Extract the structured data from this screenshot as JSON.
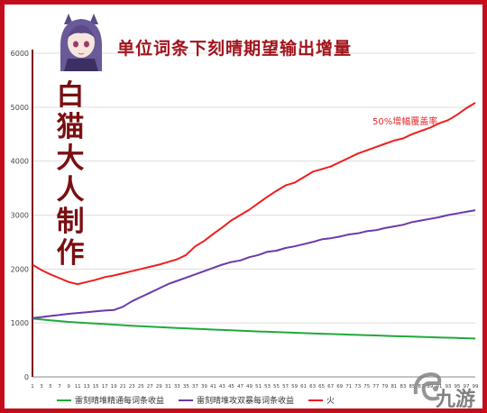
{
  "title": "单位词条下刻晴期望输出增量",
  "side_note": "白猫大人制作",
  "annotation": "50%增幅覆盖率",
  "watermark": "九游",
  "avatar_icon": "keqing-avatar-icon",
  "colors": {
    "frame": "#c40d1a",
    "title": "#a0141b",
    "green": "#1faa3c",
    "purple": "#6a3aaa",
    "red": "#ee1e1e",
    "axis": "#7a0f12",
    "grid": "#dddddd"
  },
  "chart_data": {
    "type": "line",
    "title": "单位词条下刻晴期望输出增量",
    "xlabel": "",
    "ylabel": "",
    "ylim": [
      0,
      6000
    ],
    "yticks": [
      "0",
      "1000",
      "2000",
      "3000",
      "4000",
      "5000",
      "6000"
    ],
    "x": [
      1,
      3,
      5,
      7,
      9,
      11,
      13,
      15,
      17,
      19,
      21,
      23,
      25,
      27,
      29,
      31,
      33,
      35,
      37,
      39,
      41,
      43,
      45,
      47,
      49,
      51,
      53,
      55,
      57,
      59,
      61,
      63,
      65,
      67,
      69,
      71,
      73,
      75,
      77,
      79,
      81,
      83,
      85,
      87,
      89,
      91,
      93,
      95,
      97,
      99
    ],
    "grid": true,
    "legend": "bottom",
    "series": [
      {
        "name": "雷刻晴堆精通每词条收益",
        "color": "#1faa3c",
        "values": [
          1080,
          1065,
          1050,
          1035,
          1020,
          1010,
          1000,
          990,
          980,
          970,
          960,
          950,
          940,
          932,
          924,
          916,
          908,
          900,
          892,
          885,
          878,
          871,
          864,
          857,
          850,
          843,
          837,
          831,
          825,
          819,
          813,
          807,
          801,
          795,
          790,
          784,
          778,
          773,
          768,
          762,
          757,
          752,
          747,
          742,
          737,
          732,
          727,
          722,
          717,
          712
        ]
      },
      {
        "name": "雷刻晴堆攻双暴每词条收益",
        "color": "#6a3aaa",
        "values": [
          1090,
          1110,
          1130,
          1150,
          1170,
          1185,
          1200,
          1215,
          1230,
          1240,
          1300,
          1400,
          1480,
          1560,
          1640,
          1720,
          1780,
          1840,
          1900,
          1960,
          2020,
          2080,
          2130,
          2160,
          2220,
          2260,
          2320,
          2340,
          2390,
          2420,
          2460,
          2500,
          2550,
          2570,
          2600,
          2640,
          2660,
          2700,
          2720,
          2760,
          2790,
          2820,
          2870,
          2900,
          2930,
          2960,
          3000,
          3030,
          3060,
          3090
        ]
      },
      {
        "name": "火",
        "color": "#ee1e1e",
        "values": [
          2080,
          1980,
          1900,
          1830,
          1760,
          1720,
          1760,
          1800,
          1850,
          1880,
          1920,
          1960,
          2000,
          2040,
          2080,
          2130,
          2180,
          2260,
          2420,
          2520,
          2650,
          2770,
          2900,
          3000,
          3100,
          3220,
          3340,
          3450,
          3550,
          3600,
          3700,
          3800,
          3850,
          3900,
          3980,
          4060,
          4140,
          4200,
          4260,
          4320,
          4380,
          4420,
          4500,
          4560,
          4620,
          4700,
          4760,
          4860,
          4980,
          5080
        ]
      }
    ],
    "xticks": [
      "1",
      "3",
      "5",
      "7",
      "9",
      "11",
      "13",
      "15",
      "17",
      "19",
      "21",
      "23",
      "25",
      "27",
      "29",
      "31",
      "33",
      "35",
      "37",
      "39",
      "41",
      "43",
      "45",
      "47",
      "49",
      "51",
      "53",
      "55",
      "57",
      "59",
      "61",
      "63",
      "65",
      "67",
      "69",
      "71",
      "73",
      "75",
      "77",
      "79",
      "81",
      "83",
      "85",
      "87",
      "89",
      "91",
      "93",
      "95",
      "97",
      "99"
    ]
  }
}
